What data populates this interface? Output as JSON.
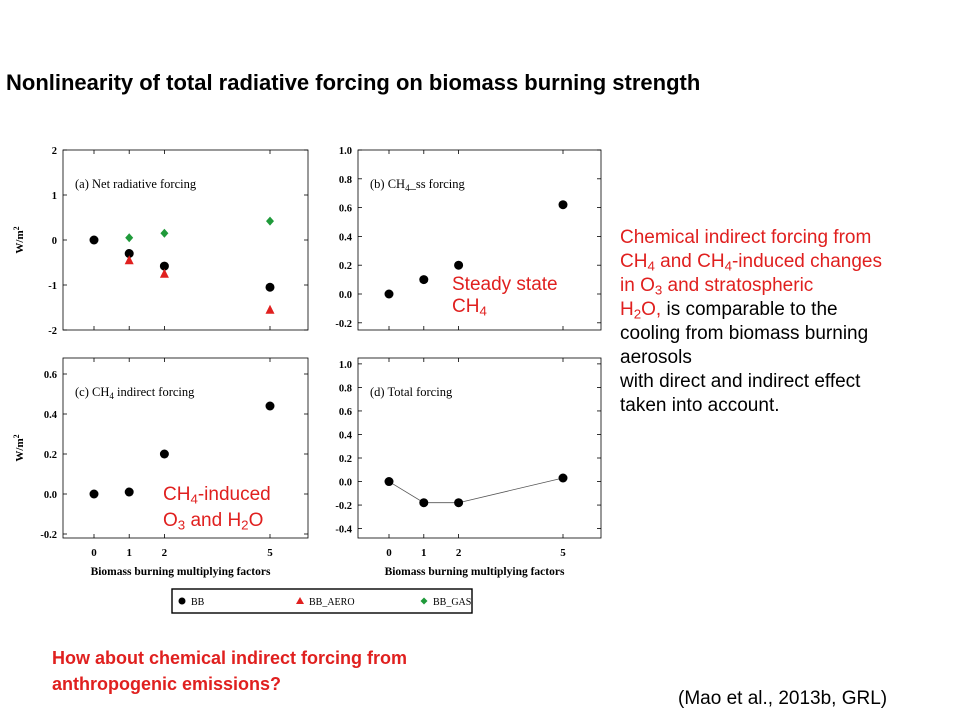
{
  "slide": {
    "title": "Nonlinearity of total radiative forcing on biomass burning strength",
    "steady_state_label": [
      "Steady state",
      "CH",
      "4"
    ],
    "ch4_induced_label": [
      "CH",
      "4",
      "-induced",
      "O",
      "3",
      " and H",
      "2",
      "O"
    ],
    "side_text": {
      "red_line1": "Chemical indirect forcing from",
      "red_line2_a": "CH",
      "red_line2_b": "4",
      "red_line2_c": " and CH",
      "red_line2_d": "4",
      "red_line2_e": "-induced changes",
      "red_line3_a": "in O",
      "red_line3_b": "3",
      "red_line3_c": " and stratospheric",
      "red_line4_a": "H",
      "red_line4_b": "2",
      "red_line4_c": "O,",
      "black_line4": " is comparable to the",
      "black_line5": "cooling from biomass burning",
      "black_line6": "aerosols",
      "black_line7": "with direct and indirect effect",
      "black_line8": "taken into account."
    },
    "question_line1": "How about chemical indirect forcing from",
    "question_line2": "anthropogenic emissions?",
    "citation": "(Mao et al., 2013b, GRL)"
  },
  "chart_data": [
    {
      "type": "scatter",
      "panel": "(a)",
      "title": "(a) Net radiative forcing",
      "ylabel": "W/m2",
      "xlabel": "",
      "x_ticks": [
        0,
        1,
        2,
        5
      ],
      "y_ticks": [
        -2,
        -1,
        0,
        1,
        2
      ],
      "ylim": [
        -2.0,
        2.0
      ],
      "series": [
        {
          "name": "BB",
          "x": [
            0,
            1,
            2,
            5
          ],
          "y": [
            0.0,
            -0.3,
            -0.58,
            -1.05
          ]
        },
        {
          "name": "BB_AERO",
          "x": [
            1,
            2,
            5
          ],
          "y": [
            -0.45,
            -0.75,
            -1.55
          ]
        },
        {
          "name": "BB_GAS",
          "x": [
            1,
            2,
            5
          ],
          "y": [
            0.05,
            0.15,
            0.42
          ]
        }
      ]
    },
    {
      "type": "scatter",
      "panel": "(b)",
      "title": "(b) CH4_ss forcing",
      "ylabel": "",
      "xlabel": "",
      "x_ticks": [
        0,
        1,
        2,
        5
      ],
      "y_ticks": [
        -0.2,
        0.0,
        0.2,
        0.4,
        0.6,
        0.8,
        1.0
      ],
      "y_tick_labels": [
        "-0.2",
        "0.0",
        "0.2",
        "0.4",
        "0.6",
        "0.8",
        "1.0"
      ],
      "ylim": [
        -0.25,
        1.0
      ],
      "series": [
        {
          "name": "BB",
          "x": [
            0,
            1,
            2,
            5
          ],
          "y": [
            0.0,
            0.1,
            0.2,
            0.62
          ]
        }
      ]
    },
    {
      "type": "scatter",
      "panel": "(c)",
      "title": "(c) CH4 indirect forcing",
      "ylabel": "W/m2",
      "xlabel": "Biomass burning multiplying factors",
      "x_ticks": [
        0,
        1,
        2,
        5
      ],
      "y_ticks": [
        -0.2,
        0.0,
        0.2,
        0.4,
        0.6
      ],
      "y_tick_labels": [
        "-0.2",
        "0.0",
        "0.2",
        "0.4",
        "0.6"
      ],
      "ylim": [
        -0.22,
        0.68
      ],
      "series": [
        {
          "name": "BB",
          "x": [
            0,
            1,
            2,
            5
          ],
          "y": [
            0.0,
            0.01,
            0.2,
            0.44
          ]
        }
      ]
    },
    {
      "type": "line",
      "panel": "(d)",
      "title": "(d) Total forcing",
      "ylabel": "",
      "xlabel": "Biomass burning multiplying factors",
      "x_ticks": [
        0,
        1,
        2,
        5
      ],
      "y_ticks": [
        -0.4,
        -0.2,
        0.0,
        0.2,
        0.4,
        0.6,
        0.8,
        1.0
      ],
      "y_tick_labels": [
        "-0.4",
        "-0.2",
        "0.0",
        "0.2",
        "0.4",
        "0.6",
        "0.8",
        "1.0"
      ],
      "ylim": [
        -0.48,
        1.05
      ],
      "series": [
        {
          "name": "BB",
          "x": [
            0,
            1,
            2,
            5
          ],
          "y": [
            0.0,
            -0.18,
            -0.18,
            0.03
          ]
        }
      ]
    }
  ],
  "legend": {
    "placement": "bottom",
    "entries": [
      {
        "name": "BB",
        "marker": "circle",
        "color": "#000000"
      },
      {
        "name": "BB_AERO",
        "marker": "triangle",
        "color": "#e0201f"
      },
      {
        "name": "BB_GAS",
        "marker": "diamond",
        "color": "#1f9a3a"
      }
    ]
  },
  "colors": {
    "BB": "#000000",
    "BB_AERO": "#e0201f",
    "BB_GAS": "#1f9a3a",
    "note_red": "#e0201f"
  }
}
